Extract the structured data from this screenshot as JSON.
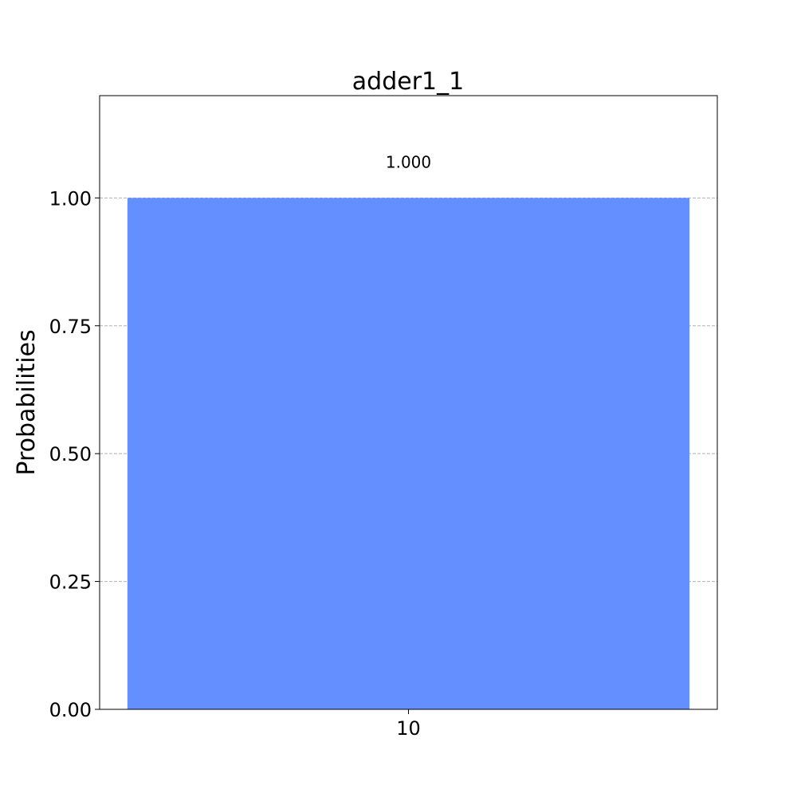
{
  "chart_data": {
    "type": "bar",
    "title": "adder1_1",
    "xlabel": "",
    "ylabel": "Probabilities",
    "categories": [
      "10"
    ],
    "values": [
      1.0
    ],
    "data_labels": [
      "1.000"
    ],
    "ylim": [
      0,
      1.2
    ],
    "yticks": [
      0,
      0.25,
      0.5,
      0.75,
      1.0
    ],
    "ytick_labels": [
      "0.00",
      "0.25",
      "0.50",
      "0.75",
      "1.00"
    ],
    "grid": "horizontal dashed",
    "bar_color": "#648fff"
  }
}
